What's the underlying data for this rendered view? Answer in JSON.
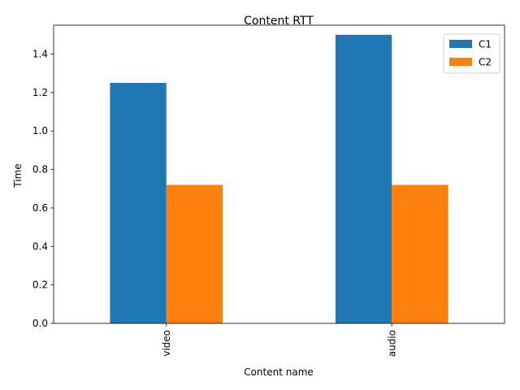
{
  "chart_data": {
    "type": "bar",
    "title": "Content RTT",
    "xlabel": "Content name",
    "ylabel": "Time",
    "categories": [
      "video",
      "audio"
    ],
    "series": [
      {
        "name": "C1",
        "values": [
          1.25,
          1.5
        ],
        "color": "#1f77b4"
      },
      {
        "name": "C2",
        "values": [
          0.72,
          0.72
        ],
        "color": "#ff7f0e"
      }
    ],
    "ylim": [
      0,
      1.55
    ],
    "yticks": [
      0.0,
      0.2,
      0.4,
      0.6,
      0.8,
      1.0,
      1.2,
      1.4
    ],
    "ytick_format_decimals": 1,
    "xtick_rotation": "vertical",
    "grid": false,
    "legend_position": "top-right"
  }
}
